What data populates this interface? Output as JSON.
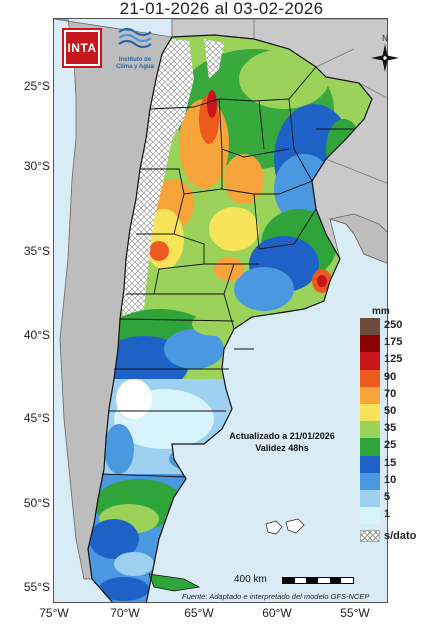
{
  "title": "21-01-2026 al 03-02-2026",
  "logos": {
    "inta": "INTA",
    "clima": [
      "Instituto de",
      "Clima y Agua"
    ]
  },
  "compass_label": "N",
  "lat_labels": [
    "25°S",
    "30°S",
    "35°S",
    "40°S",
    "45°S",
    "50°S",
    "55°S"
  ],
  "lon_labels": [
    "75°W",
    "70°W",
    "65°W",
    "60°W",
    "55°W"
  ],
  "legend": {
    "unit": "mm",
    "levels": [
      {
        "label": "250",
        "color": "#6e4a3d"
      },
      {
        "label": "175",
        "color": "#8b0000"
      },
      {
        "label": "125",
        "color": "#c8141a"
      },
      {
        "label": "90",
        "color": "#ec5a1e"
      },
      {
        "label": "70",
        "color": "#f7a43a"
      },
      {
        "label": "50",
        "color": "#f8e458"
      },
      {
        "label": "35",
        "color": "#9bd35a"
      },
      {
        "label": "25",
        "color": "#2ea43a"
      },
      {
        "label": "15",
        "color": "#1e62c8"
      },
      {
        "label": "10",
        "color": "#4a98e0"
      },
      {
        "label": "5",
        "color": "#9ed0f2"
      },
      {
        "label": "1",
        "color": "#d7f3fb"
      }
    ],
    "no_data_label": "s/dato"
  },
  "updated_lines": [
    "Actualizado a 21/01/2026",
    "Validez 48hs"
  ],
  "scale_label": "400 km",
  "source": "Fuente: Adaptado e interpretado del modelo GFS-NCEP",
  "colors": {
    "ocean": "#d9ecf6",
    "neighbor_land": "#bdbdbd",
    "border": "#111111"
  }
}
